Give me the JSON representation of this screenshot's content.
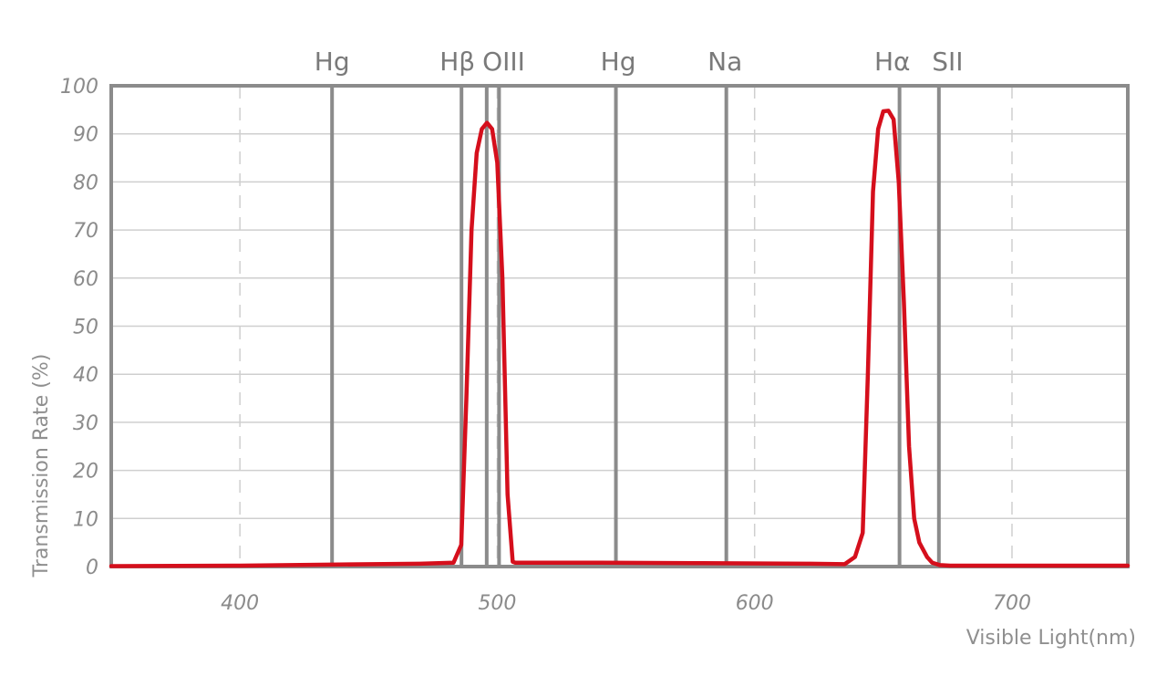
{
  "chart_data": {
    "type": "line",
    "title": "",
    "xlabel": "Visible Light(nm)",
    "ylabel": "Transmission Rate (%)",
    "xlim": [
      350,
      745
    ],
    "ylim": [
      0,
      100
    ],
    "xticks": [
      400,
      500,
      600,
      700
    ],
    "xtick_labels": [
      "400",
      "500",
      "600",
      "700"
    ],
    "yticks": [
      0,
      10,
      20,
      30,
      40,
      50,
      60,
      70,
      80,
      90,
      100
    ],
    "ytick_labels": [
      "0",
      "10",
      "20",
      "30",
      "40",
      "50",
      "60",
      "70",
      "80",
      "90",
      "100"
    ],
    "grid": {
      "horizontal": true,
      "vertical_dashed": true
    },
    "spectral_lines": [
      {
        "label": "Hg",
        "x": 435.8
      },
      {
        "label": "Hβ",
        "x": 486.1
      },
      {
        "label": "OIII",
        "x": 495.9
      },
      {
        "label": "OIII",
        "x": 500.7
      },
      {
        "label": "Hg",
        "x": 546.1
      },
      {
        "label": "Na",
        "x": 589.0
      },
      {
        "label": "Hα",
        "x": 656.3
      },
      {
        "label": "SII",
        "x": 671.6
      }
    ],
    "spectral_line_labels": [
      {
        "text": "Hg",
        "x": 435.8
      },
      {
        "text": "Hβ",
        "x": 484.5
      },
      {
        "text": "OIII",
        "x": 502.5
      },
      {
        "text": "Hg",
        "x": 547.0
      },
      {
        "text": "Na",
        "x": 588.5
      },
      {
        "text": "Hα",
        "x": 653.5
      },
      {
        "text": "SII",
        "x": 675.0
      }
    ],
    "series": [
      {
        "x": [
          350,
          400,
          435,
          470,
          483,
          486,
          488,
          490,
          492,
          494,
          496,
          498,
          500,
          502,
          504,
          506,
          507,
          510,
          540,
          580,
          620,
          635,
          639,
          642,
          644,
          646,
          648,
          650,
          652,
          654,
          656,
          658,
          660,
          662,
          664,
          667,
          669,
          672,
          676,
          680,
          700,
          745
        ],
        "y": [
          0.1,
          0.2,
          0.4,
          0.6,
          0.8,
          4.5,
          35,
          70,
          86,
          91,
          92.3,
          91,
          84,
          60,
          15,
          1,
          0.8,
          0.8,
          0.8,
          0.7,
          0.6,
          0.5,
          2,
          7,
          40,
          78,
          91,
          94.7,
          94.8,
          93,
          80,
          55,
          25,
          10,
          5,
          2,
          0.8,
          0.3,
          0.2,
          0.2,
          0.2,
          0.2
        ],
        "color": "#d50f1c"
      }
    ],
    "colors": {
      "curve": "#d50f1c",
      "frame": "#8b8b8b",
      "grid": "#cfcfcf",
      "spectral_line": "#8b8b8b"
    }
  }
}
